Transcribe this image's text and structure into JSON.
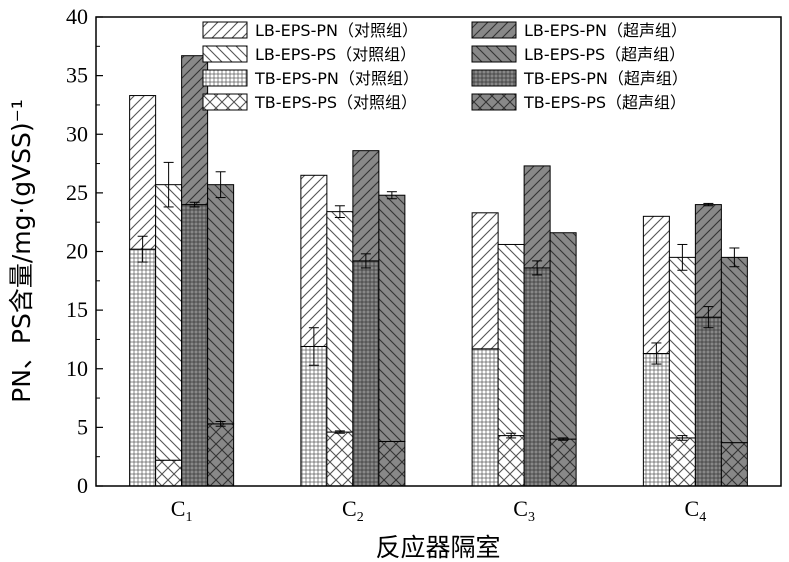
{
  "chart_data": {
    "type": "bar",
    "stacked_pairs": true,
    "xlabel": "反应器隔室",
    "ylabel": "PN、PS含量/mg·(gVSS)⁻¹",
    "ylim": [
      0,
      40
    ],
    "y_ticks": [
      "0",
      "5",
      "10",
      "15",
      "20",
      "25",
      "30",
      "35",
      "40"
    ],
    "categories": [
      {
        "main": "C",
        "sub": "1"
      },
      {
        "main": "C",
        "sub": "2"
      },
      {
        "main": "C",
        "sub": "3"
      },
      {
        "main": "C",
        "sub": "4"
      }
    ],
    "bar_groups": [
      {
        "name": "对照组 PN",
        "bottom": "TB-EPS-PN (对照组)",
        "top": "LB-EPS-PN (对照组)"
      },
      {
        "name": "对照组 PS",
        "bottom": "TB-EPS-PS (对照组)",
        "top": "LB-EPS-PS (对照组)"
      },
      {
        "name": "超声组 PN",
        "bottom": "TB-EPS-PN (超声组)",
        "top": "LB-EPS-PN (超声组)"
      },
      {
        "name": "超声组 PS",
        "bottom": "TB-EPS-PS (超声组)",
        "top": "LB-EPS-PS (超声组)"
      }
    ],
    "series": [
      {
        "name": "LB-EPS-PN（对照组）",
        "key": "LB-EPS-PN (对照组)",
        "pattern": "diag-fwd",
        "fill": "#ffffff",
        "values": [
          13.1,
          14.6,
          11.6,
          11.7
        ],
        "err": [
          0,
          0,
          0,
          0
        ]
      },
      {
        "name": "LB-EPS-PS（对照组）",
        "key": "LB-EPS-PS (对照组)",
        "pattern": "diag-back",
        "fill": "#ffffff",
        "values": [
          23.5,
          18.8,
          16.3,
          15.4
        ],
        "err": [
          0,
          0,
          0,
          0
        ]
      },
      {
        "name": "TB-EPS-PN（对照组）",
        "key": "TB-EPS-PN (对照组)",
        "pattern": "grid",
        "fill": "#ffffff",
        "values": [
          20.2,
          11.9,
          11.7,
          11.3
        ],
        "err": [
          1.1,
          1.6,
          0,
          0.9
        ]
      },
      {
        "name": "TB-EPS-PS（对照组）",
        "key": "TB-EPS-PS (对照组)",
        "pattern": "cross",
        "fill": "#ffffff",
        "values": [
          2.2,
          4.6,
          4.3,
          4.1
        ],
        "err": [
          0,
          0.1,
          0.2,
          0.2
        ]
      },
      {
        "name": "LB-EPS-PN（超声组）",
        "key": "LB-EPS-PN (超声组)",
        "pattern": "diag-fwd",
        "fill": "#888888",
        "values": [
          12.7,
          9.4,
          8.7,
          9.6
        ],
        "err": [
          0,
          0,
          0,
          0
        ]
      },
      {
        "name": "LB-EPS-PS（超声组）",
        "key": "LB-EPS-PS (超声组)",
        "pattern": "diag-back",
        "fill": "#888888",
        "values": [
          20.4,
          21.0,
          17.6,
          15.8
        ],
        "err": [
          0,
          0,
          0,
          0
        ]
      },
      {
        "name": "TB-EPS-PN（超声组）",
        "key": "TB-EPS-PN (超声组)",
        "pattern": "grid",
        "fill": "#888888",
        "values": [
          24.0,
          19.2,
          18.6,
          14.4
        ],
        "err": [
          0.2,
          0.6,
          0.6,
          0.9
        ]
      },
      {
        "name": "TB-EPS-PS（超声组）",
        "key": "TB-EPS-PS (超声组)",
        "pattern": "cross",
        "fill": "#888888",
        "values": [
          5.3,
          3.8,
          4.0,
          3.7
        ],
        "err": [
          0.2,
          0,
          0.1,
          0
        ]
      }
    ],
    "top_error": {
      "对照组 PN": [
        0,
        0,
        0,
        0
      ],
      "对照组 PS": [
        1.9,
        0.5,
        0,
        1.1
      ],
      "超声组 PN": [
        0,
        0,
        0,
        0.1
      ],
      "超声组 PS": [
        1.1,
        0.3,
        0,
        0.8
      ]
    },
    "legend_position": "top-right",
    "grid": false
  }
}
